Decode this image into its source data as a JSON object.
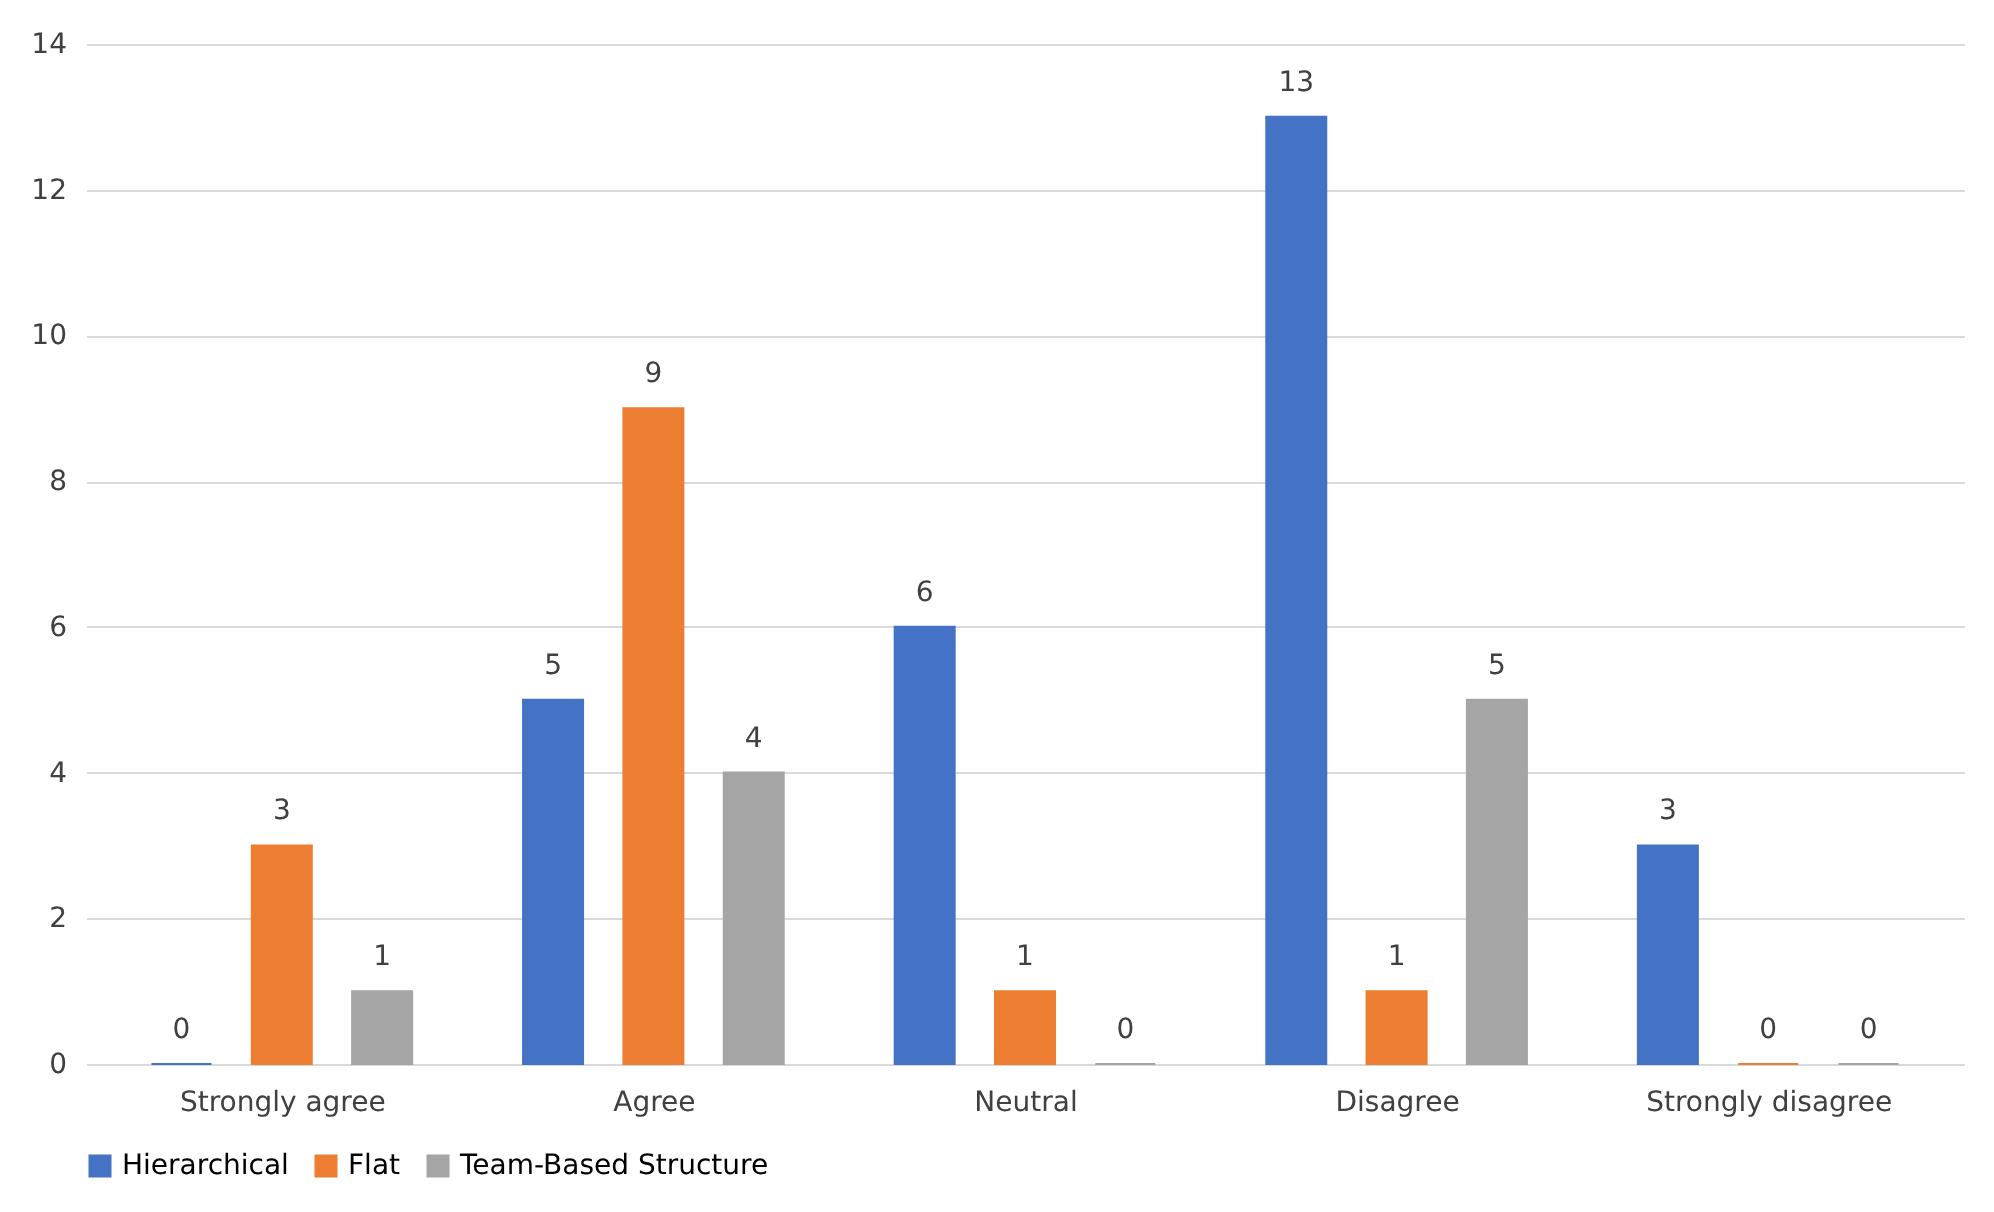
{
  "chart_data": {
    "type": "bar",
    "categories": [
      "Strongly agree",
      "Agree",
      "Neutral",
      "Disagree",
      "Strongly disagree"
    ],
    "series": [
      {
        "name": "Hierarchical",
        "color": "#4472c4",
        "values": [
          0,
          5,
          6,
          13,
          3
        ]
      },
      {
        "name": "Flat",
        "color": "#ed7d31",
        "values": [
          3,
          9,
          1,
          1,
          0
        ]
      },
      {
        "name": "Team-Based Structure",
        "color": "#a5a5a5",
        "values": [
          1,
          4,
          0,
          5,
          0
        ]
      }
    ],
    "ylim": [
      0,
      14
    ],
    "yticks": [
      0,
      2,
      4,
      6,
      8,
      10,
      12,
      14
    ],
    "grid": "y",
    "legend": "bottom",
    "data_labels": true
  }
}
